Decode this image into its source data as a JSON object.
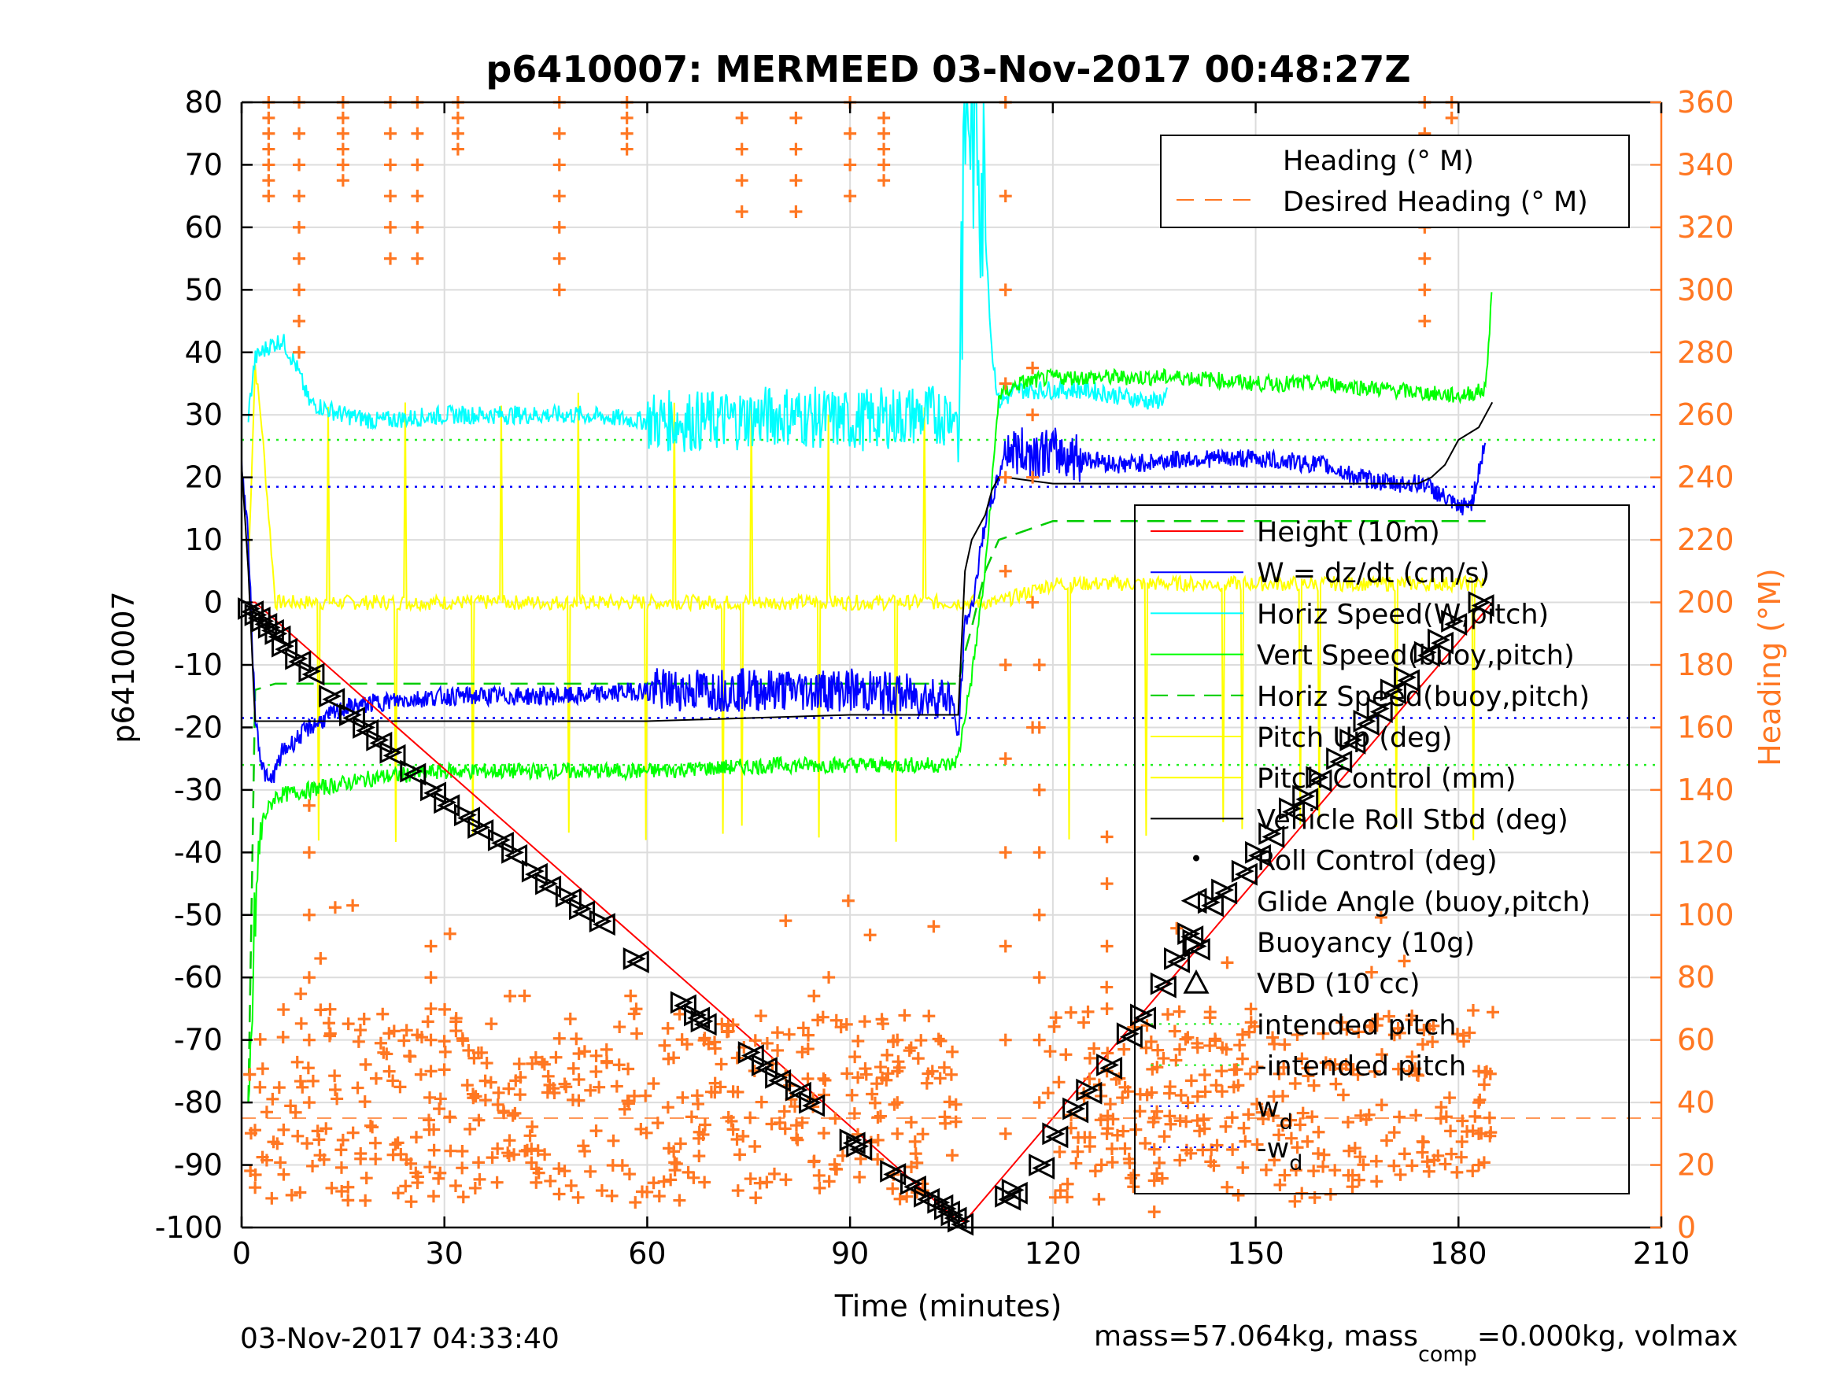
{
  "chart_data": {
    "type": "line",
    "title": "p6410007: MERMEED 03-Nov-2017 00:48:27Z",
    "xlabel": "Time (minutes)",
    "ylabel": "p6410007",
    "ylabel_right": "Heading (°M)",
    "xlim": [
      0,
      210
    ],
    "ylim": [
      -100,
      80
    ],
    "ylim_right": [
      0,
      360
    ],
    "x_ticks": [
      "0",
      "30",
      "60",
      "90",
      "120",
      "150",
      "180",
      "210"
    ],
    "y_ticks": [
      "80",
      "70",
      "60",
      "50",
      "40",
      "30",
      "20",
      "10",
      "0",
      "-10",
      "-20",
      "-30",
      "-40",
      "-50",
      "-60",
      "-70",
      "-80",
      "-90",
      "-100"
    ],
    "y_ticks_right": [
      "360",
      "340",
      "320",
      "300",
      "280",
      "260",
      "240",
      "220",
      "200",
      "180",
      "160",
      "140",
      "120",
      "100",
      "80",
      "60",
      "40",
      "20",
      "0"
    ],
    "grid": true,
    "legend_top": [
      "Heading (° M)",
      "Desired Heading (° M)"
    ],
    "legend_main": [
      "Height (10m)",
      "W = dz/dt (cm/s)",
      "Horiz Speed(W,pitch)",
      "Vert Speed(buoy,pitch)",
      "Horiz Speed(buoy,pitch)",
      "Pitch Up (deg)",
      "Pitch Control (mm)",
      "Vehicle Roll Stbd (deg)",
      "Roll Control (deg)",
      "Glide Angle (buoy,pitch)",
      "Buoyancy (10g)",
      "VBD (10 cc)",
      "intended pitch",
      "-intended pitch",
      "w",
      "-w"
    ],
    "legend_main_sub": {
      "w": "d",
      "-w": "d"
    },
    "legend_placement": [
      "top-right",
      "right"
    ],
    "colors": {
      "height": "#ff0000",
      "w": "#0000ff",
      "horiz_speed_w": "#00ffff",
      "vert_speed": "#00ff00",
      "horiz_speed_buoy": "#00cc00",
      "pitch": "#ffff00",
      "roll": "#000000",
      "heading": "#ff7722",
      "intended_pitch": "#22ee22",
      "wd": "#0000ff"
    },
    "series": [
      {
        "name": "Height (10m)",
        "x": [
          0,
          2,
          106,
          107,
          185
        ],
        "values": [
          0,
          0,
          -99,
          -99,
          0
        ]
      },
      {
        "name": "W = dz/dt (cm/s)",
        "x": [
          0,
          1,
          2,
          3,
          4,
          5,
          6,
          8,
          10,
          15,
          20,
          30,
          40,
          50,
          60,
          70,
          80,
          90,
          100,
          105,
          106,
          107,
          108,
          110,
          112,
          113,
          115,
          120,
          130,
          140,
          150,
          160,
          165,
          170,
          175,
          180,
          182,
          184
        ],
        "values": [
          22,
          10,
          -18,
          -26,
          -29,
          -27,
          -24,
          -22,
          -20,
          -17,
          -16,
          -15,
          -15,
          -15,
          -14,
          -14,
          -14,
          -14,
          -15,
          -15,
          -22,
          -3,
          -1,
          13,
          20,
          25,
          24,
          24,
          22,
          23,
          23,
          22,
          20,
          19,
          19,
          15,
          16,
          26
        ]
      },
      {
        "name": "Horiz Speed(W,pitch)",
        "x": [
          1,
          2,
          4,
          6,
          8,
          10,
          15,
          20,
          30,
          40,
          50,
          60,
          70,
          80,
          90,
          100,
          104,
          106,
          107,
          109,
          110,
          111,
          112,
          115,
          120,
          125,
          130,
          135,
          137
        ],
        "values": [
          30,
          39,
          41,
          42,
          38,
          32,
          30,
          29,
          30,
          30,
          30,
          29,
          29,
          30,
          29,
          30,
          30,
          30,
          80,
          80,
          60,
          40,
          32,
          34,
          34,
          34,
          33,
          32,
          33
        ]
      },
      {
        "name": "Vert Speed(buoy,pitch)",
        "x": [
          1,
          2,
          3,
          5,
          10,
          20,
          30,
          40,
          60,
          80,
          100,
          105,
          106,
          107,
          108,
          110,
          112,
          115,
          120,
          130,
          140,
          150,
          160,
          170,
          180,
          184,
          185
        ],
        "values": [
          -86,
          -50,
          -35,
          -31,
          -30,
          -28,
          -27,
          -27,
          -27,
          -26,
          -26,
          -26,
          -25,
          -18,
          -12,
          5,
          33,
          35,
          36,
          36,
          36,
          35,
          35,
          34,
          33,
          34,
          51
        ]
      },
      {
        "name": "Horiz Speed(buoy,pitch)",
        "x": [
          1,
          2,
          5,
          20,
          40,
          60,
          80,
          100,
          106,
          107,
          108,
          110,
          112,
          120,
          140,
          160,
          180,
          185
        ],
        "values": [
          -80,
          -14,
          -13,
          -13,
          -13,
          -13,
          -13,
          -13,
          -13,
          -8,
          -4,
          5,
          10,
          13,
          13,
          13,
          13,
          13
        ]
      },
      {
        "name": "Pitch Up (deg)",
        "x": [
          1,
          2,
          3,
          5,
          8,
          10,
          20,
          40,
          60,
          80,
          100,
          105,
          106,
          108,
          110,
          112,
          120,
          140,
          160,
          180,
          184
        ],
        "values": [
          5,
          38,
          28,
          0,
          0,
          0,
          0,
          0,
          0,
          0,
          0,
          0,
          0,
          0,
          0,
          0,
          3,
          3,
          3,
          3,
          3
        ]
      },
      {
        "name": "Vehicle Roll Stbd (deg)",
        "x": [
          0,
          1,
          2,
          10,
          30,
          60,
          90,
          106,
          107,
          108,
          110,
          111,
          112,
          113,
          120,
          130,
          150,
          170,
          174,
          176,
          178,
          180,
          183,
          185
        ],
        "values": [
          22,
          5,
          -19,
          -19,
          -19,
          -19,
          -18,
          -18,
          5,
          10,
          14,
          18,
          20,
          20,
          19,
          19,
          19,
          19,
          19,
          20,
          22,
          26,
          28,
          32
        ]
      },
      {
        "name": "intended pitch",
        "values": [
          26
        ]
      },
      {
        "name": "-intended pitch",
        "values": [
          -26
        ]
      },
      {
        "name": "w",
        "values": [
          18.5
        ]
      },
      {
        "name": "-w",
        "values": [
          -18.5
        ]
      },
      {
        "name": "Desired Heading (° M)",
        "values": [
          35
        ]
      },
      {
        "name": "Glide Angle (buoy,pitch)",
        "x": [
          1,
          2,
          3,
          4,
          5,
          6,
          8,
          10,
          13,
          16,
          18,
          20,
          22,
          25,
          28,
          30,
          33,
          35,
          38,
          40,
          43,
          45,
          48,
          50,
          53,
          58,
          65,
          67,
          68,
          75,
          77,
          79,
          82,
          84,
          90,
          91,
          96,
          99,
          101,
          103,
          104,
          105,
          106,
          113,
          114,
          118,
          120,
          123,
          125,
          128,
          131,
          133,
          136,
          138,
          140,
          141,
          143,
          145,
          148,
          150,
          152,
          155,
          157,
          159,
          162,
          164,
          166,
          168,
          170,
          172,
          175,
          177,
          179,
          183
        ],
        "values": [
          -1,
          -2,
          -3,
          -4,
          -5,
          -7,
          -9,
          -11,
          -15,
          -18,
          -20,
          -22,
          -24,
          -27,
          -30,
          -32,
          -34,
          -36,
          -38,
          -40,
          -43,
          -45,
          -47,
          -49,
          -51,
          -57,
          -64,
          -66,
          -67,
          -72,
          -74,
          -76,
          -78,
          -80,
          -86,
          -87,
          -91,
          -93,
          -95,
          -96,
          -97,
          -98,
          -99,
          -95,
          -94,
          -90,
          -85,
          -81,
          -78,
          -74,
          -69,
          -66,
          -61,
          -57,
          -53,
          -55,
          -48,
          -46,
          -43,
          -40,
          -37,
          -33,
          -31,
          -28,
          -25,
          -22,
          -19,
          -17,
          -14,
          -12,
          -8,
          -6,
          -3,
          0
        ]
      },
      {
        "name": "Heading (° M)",
        "groups": [
          {
            "x": 4,
            "values": [
              330,
              335,
              340,
              345,
              350,
              355,
              360
            ]
          },
          {
            "x": 8.5,
            "values": [
              280,
              290,
              300,
              310,
              320,
              330,
              340,
              350,
              360
            ]
          },
          {
            "x": 15,
            "values": [
              335,
              340,
              345,
              350,
              355,
              360
            ]
          },
          {
            "x": 22,
            "values": [
              310,
              320,
              330,
              340,
              350,
              360
            ]
          },
          {
            "x": 26,
            "values": [
              310,
              320,
              330,
              340,
              350,
              360
            ]
          },
          {
            "x": 32,
            "values": [
              345,
              350,
              355,
              360
            ]
          },
          {
            "x": 47,
            "values": [
              300,
              310,
              320,
              330,
              340,
              350,
              360
            ]
          },
          {
            "x": 57,
            "values": [
              345,
              350,
              355,
              360
            ]
          },
          {
            "x": 74,
            "values": [
              325,
              335,
              345,
              355
            ]
          },
          {
            "x": 82,
            "values": [
              325,
              335,
              345,
              355
            ]
          },
          {
            "x": 90,
            "values": [
              330,
              340,
              350,
              360
            ]
          },
          {
            "x": 95,
            "values": [
              335,
              340,
              345,
              350,
              355
            ]
          },
          {
            "x": 113,
            "values": [
              30,
              60,
              90,
              120,
              150,
              180,
              210,
              240,
              270,
              300,
              330,
              360
            ]
          },
          {
            "x": 117,
            "values": [
              160,
              200,
              240,
              260,
              275
            ]
          },
          {
            "x": 175,
            "values": [
              290,
              300,
              310,
              320,
              330,
              340,
              350,
              360
            ]
          },
          {
            "x": 179,
            "values": [
              355,
              360
            ]
          },
          {
            "x": 10,
            "values": [
              40,
              60,
              80,
              100,
              120,
              135
            ]
          },
          {
            "x": 28,
            "values": [
              50,
              60,
              70,
              80,
              90
            ]
          },
          {
            "x": 97,
            "values": [
              30,
              40,
              50,
              60
            ]
          },
          {
            "x": 118,
            "values": [
              40,
              60,
              80,
              100,
              120,
              140,
              160,
              180
            ]
          },
          {
            "x": 128,
            "values": [
              30,
              50,
              70,
              90,
              110,
              125
            ]
          },
          {
            "x": 135,
            "values": [
              5,
              15,
              25,
              35
            ]
          },
          {
            "x": 183,
            "values": [
              20,
              30,
              40,
              50
            ]
          }
        ]
      }
    ]
  },
  "footer_left": "03-Nov-2017 04:33:40",
  "footer_right_prefix": "mass=57.064kg, mass",
  "footer_right_sub": "comp",
  "footer_right_suffix": "=0.000kg, volmax"
}
